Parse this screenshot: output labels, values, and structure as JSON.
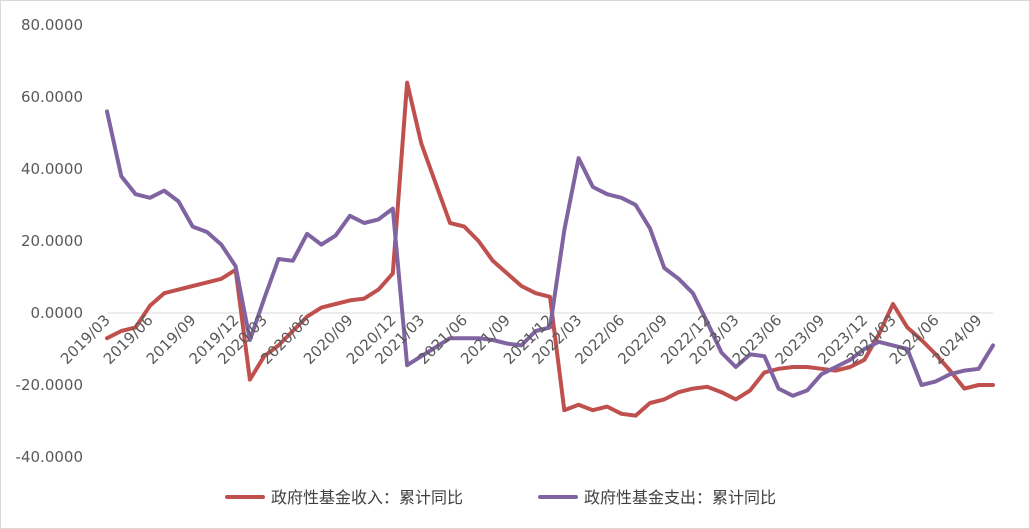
{
  "chart_data": {
    "type": "line",
    "title": "",
    "xlabel": "",
    "ylabel": "",
    "ylim": [
      -40,
      80
    ],
    "yticks": [
      80,
      60,
      40,
      20,
      0,
      -20,
      -40
    ],
    "ytick_labels": [
      "80.0000",
      "60.0000",
      "40.0000",
      "20.0000",
      "0.0000",
      "-20.0000",
      "-40.0000"
    ],
    "x_tick_labels": [
      "2019/03",
      "2019/06",
      "2019/09",
      "2019/12",
      "2020/03",
      "2020/06",
      "2020/09",
      "2020/12",
      "2021/03",
      "2021/06",
      "2021/09",
      "2021/12",
      "2022/03",
      "2022/06",
      "2022/09",
      "2022/12",
      "2023/03",
      "2023/06",
      "2023/09",
      "2023/12",
      "2024/03",
      "2024/06",
      "2024/09"
    ],
    "x": [
      "2019/03",
      "2019/04",
      "2019/05",
      "2019/06",
      "2019/07",
      "2019/08",
      "2019/09",
      "2019/10",
      "2019/11",
      "2019/12",
      "2020/02",
      "2020/03",
      "2020/04",
      "2020/05",
      "2020/06",
      "2020/07",
      "2020/08",
      "2020/09",
      "2020/10",
      "2020/11",
      "2020/12",
      "2021/02",
      "2021/03",
      "2021/04",
      "2021/05",
      "2021/06",
      "2021/07",
      "2021/08",
      "2021/09",
      "2021/10",
      "2021/11",
      "2021/12",
      "2022/02",
      "2022/03",
      "2022/04",
      "2022/05",
      "2022/06",
      "2022/07",
      "2022/08",
      "2022/09",
      "2022/10",
      "2022/11",
      "2022/12",
      "2023/02",
      "2023/03",
      "2023/04",
      "2023/05",
      "2023/06",
      "2023/07",
      "2023/08",
      "2023/09",
      "2023/10",
      "2023/11",
      "2023/12",
      "2024/02",
      "2024/03",
      "2024/04",
      "2024/05",
      "2024/06",
      "2024/07",
      "2024/08",
      "2024/09",
      "2024/10"
    ],
    "legend_position": "bottom",
    "grid": false,
    "series": [
      {
        "name": "政府性基金收入：累计同比",
        "color": "#C0504D",
        "values": [
          -7,
          -5,
          -4,
          2,
          5.5,
          6.5,
          7.5,
          8.5,
          9.5,
          12,
          -18.5,
          -12,
          -9,
          -5,
          -1,
          1.5,
          2.5,
          3.5,
          4,
          6.5,
          11,
          64,
          47,
          36,
          25,
          24,
          20,
          14.5,
          11,
          7.5,
          5.5,
          4.5,
          -27,
          -25.5,
          -27,
          -26,
          -28,
          -28.5,
          -25,
          -24,
          -22,
          -21,
          -20.5,
          -22,
          -24,
          -21.5,
          -16.5,
          -15.5,
          -15,
          -15,
          -15.5,
          -16,
          -15,
          -13,
          -6,
          2.5,
          -4,
          -7.5,
          -11.5,
          -16,
          -21,
          -20,
          -20
        ]
      },
      {
        "name": "政府性基金支出：累计同比",
        "color": "#8064A2",
        "values": [
          56,
          38,
          33,
          32,
          34,
          31,
          24,
          22.5,
          19,
          13,
          -7.5,
          4,
          15,
          14.5,
          22,
          19,
          21.5,
          27,
          25,
          26,
          29,
          -14.5,
          -12,
          -9.5,
          -7,
          -7,
          -7,
          -7.5,
          -8.5,
          -9,
          -5,
          -4,
          23,
          43,
          35,
          33,
          32,
          30,
          23.5,
          12.5,
          9.5,
          5.5,
          -2.5,
          -11,
          -15,
          -11.5,
          -12,
          -21,
          -23,
          -21.5,
          -17,
          -15,
          -13,
          -10,
          -8,
          -9,
          -10,
          -20,
          -19,
          -17,
          -16,
          -15.5,
          -9
        ]
      }
    ]
  }
}
